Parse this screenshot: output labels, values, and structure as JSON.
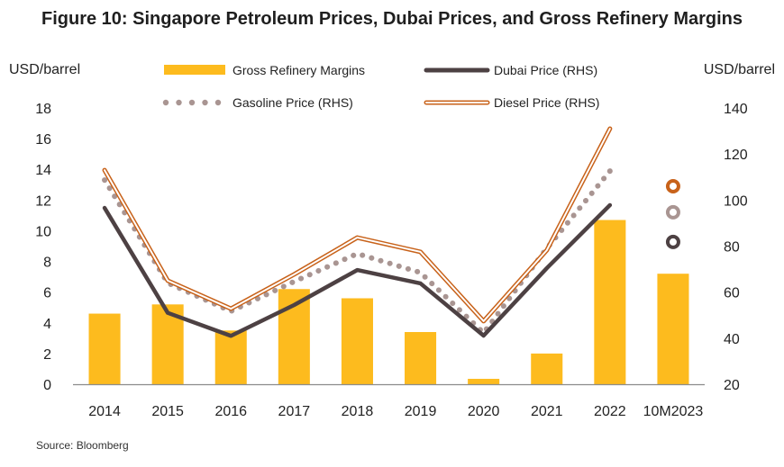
{
  "chart_data": {
    "type": "bar+line",
    "title": "Figure 10: Singapore Petroleum Prices, Dubai Prices, and Gross Refinery Margins",
    "source": "Source: Bloomberg",
    "categories": [
      "2014",
      "2015",
      "2016",
      "2017",
      "2018",
      "2019",
      "2020",
      "2021",
      "2022",
      "10M2023"
    ],
    "left_axis": {
      "label": "USD/barrel",
      "range": [
        0,
        18
      ],
      "ticks": [
        "0",
        "2",
        "4",
        "6",
        "8",
        "10",
        "12",
        "14",
        "16",
        "18"
      ]
    },
    "right_axis": {
      "label": "USD/barrel",
      "range": [
        20,
        140
      ],
      "ticks": [
        "20",
        "40",
        "60",
        "80",
        "100",
        "120",
        "140"
      ]
    },
    "grid": false,
    "legend_position": "top",
    "series": [
      {
        "name": "Gross Refinery Margins",
        "type": "bar",
        "axis": "left",
        "color": "#FDBB1E",
        "values": [
          4.6,
          5.2,
          3.5,
          6.2,
          5.6,
          3.4,
          0.35,
          2.0,
          10.7,
          7.2
        ]
      },
      {
        "name": "Dubai Price (RHS)",
        "type": "line",
        "axis": "right",
        "color": "#4D4143",
        "style": "solid",
        "values": [
          96.6,
          51.0,
          41.0,
          54.4,
          69.6,
          63.8,
          41.1,
          70.4,
          97.8,
          81.8
        ]
      },
      {
        "name": "Gasoline Price (RHS)",
        "type": "line",
        "axis": "right",
        "color": "#A99592",
        "style": "dotted",
        "values": [
          108.7,
          64.0,
          51.7,
          64.6,
          76.7,
          68.5,
          42.3,
          79.0,
          112.6,
          94.7
        ]
      },
      {
        "name": "Diesel Price (RHS)",
        "type": "line",
        "axis": "right",
        "color": "#C8621A",
        "style": "double",
        "values": [
          113.0,
          65.0,
          52.8,
          67.7,
          83.7,
          77.5,
          47.4,
          78.2,
          131.0,
          106.0
        ]
      }
    ],
    "legend": [
      {
        "label": "Gross Refinery Margins",
        "series": 0
      },
      {
        "label": "Dubai Price (RHS)",
        "series": 1
      },
      {
        "label": "Gasoline Price (RHS)",
        "series": 2
      },
      {
        "label": "Diesel Price (RHS)",
        "series": 3
      }
    ]
  }
}
